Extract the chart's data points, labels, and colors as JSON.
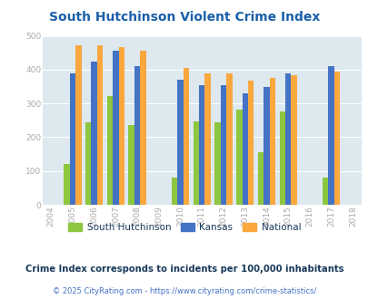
{
  "title": "South Hutchinson Violent Crime Index",
  "years": [
    2005,
    2006,
    2007,
    2008,
    2010,
    2011,
    2012,
    2013,
    2014,
    2015,
    2017
  ],
  "south_hutchinson": [
    122,
    245,
    322,
    236,
    80,
    246,
    245,
    281,
    157,
    276,
    81
  ],
  "kansas": [
    390,
    425,
    455,
    411,
    370,
    355,
    355,
    329,
    348,
    389,
    410
  ],
  "national": [
    471,
    473,
    467,
    455,
    406,
    388,
    388,
    368,
    376,
    383,
    394
  ],
  "colors": {
    "south_hutchinson": "#8dc63f",
    "kansas": "#4472c4",
    "national": "#faa73e"
  },
  "ylim": [
    0,
    500
  ],
  "yticks": [
    0,
    100,
    200,
    300,
    400,
    500
  ],
  "xticks": [
    2004,
    2005,
    2006,
    2007,
    2008,
    2009,
    2010,
    2011,
    2012,
    2013,
    2014,
    2015,
    2016,
    2017,
    2018
  ],
  "background_color": "#dde8ef",
  "legend_labels": [
    "South Hutchinson",
    "Kansas",
    "National"
  ],
  "footnote1": "Crime Index corresponds to incidents per 100,000 inhabitants",
  "footnote2": "© 2025 CityRating.com - https://www.cityrating.com/crime-statistics/",
  "title_color": "#1a5fa8",
  "footnote1_color": "#1a3a5c",
  "footnote2_color": "#4472c4",
  "bar_width": 0.27,
  "tick_color": "#aaaaaa"
}
